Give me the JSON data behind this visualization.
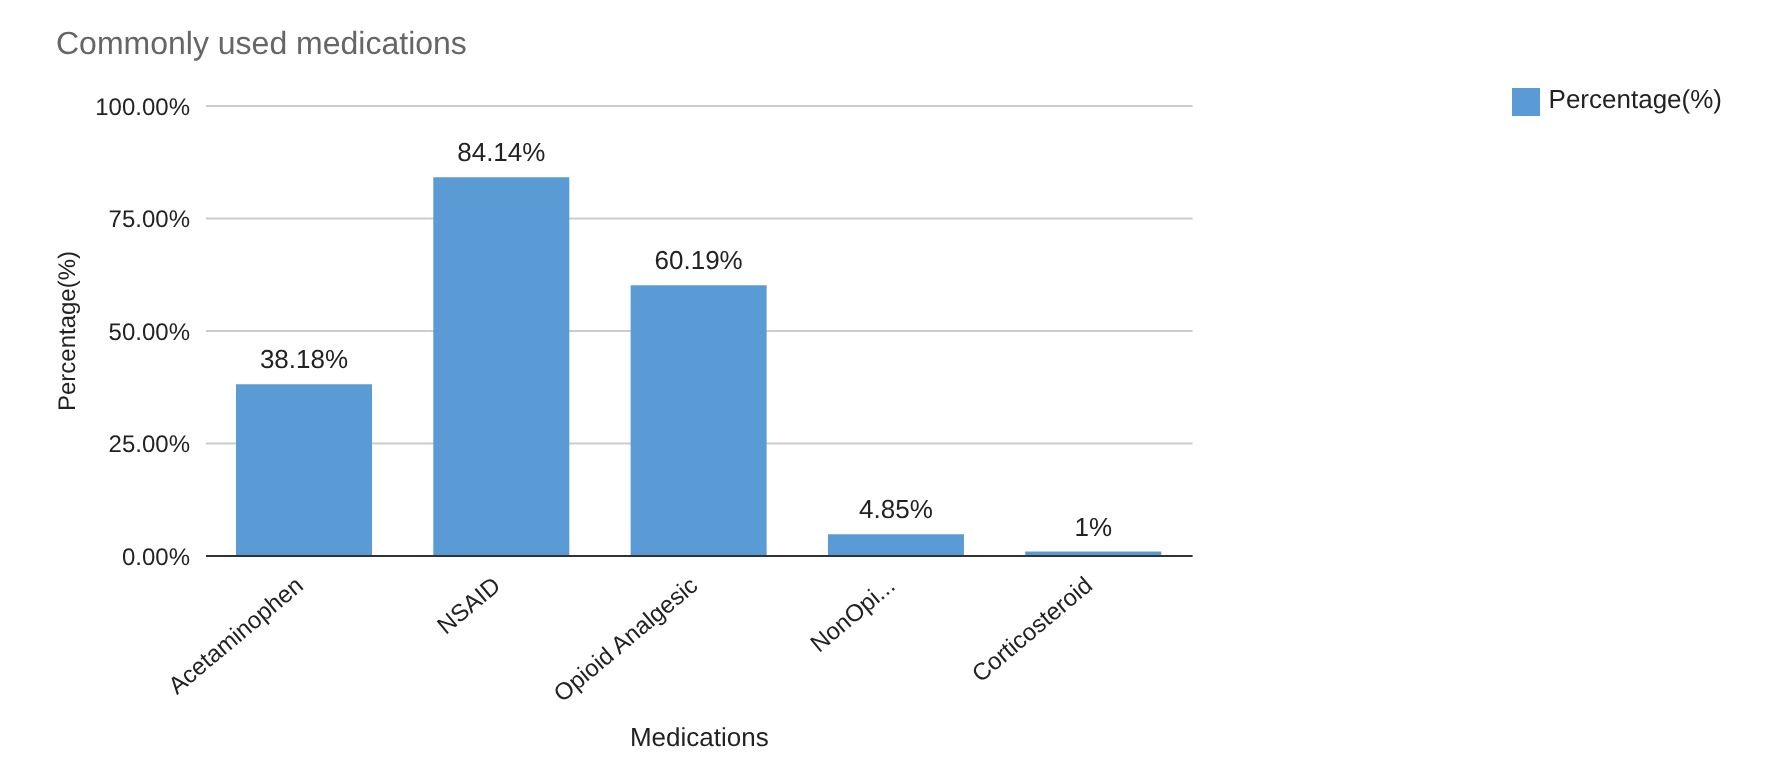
{
  "chart_data": {
    "type": "bar",
    "title": "Commonly used medications",
    "xlabel": "Medications",
    "ylabel": "Percentage(%)",
    "categories": [
      "Acetaminophen",
      "NSAID",
      "Opioid Analgesic",
      "NonOpi...",
      "Corticosteroid"
    ],
    "series": [
      {
        "name": "Percentage(%)",
        "color": "#5b9bd5",
        "values": [
          38.18,
          84.14,
          60.19,
          4.85,
          1
        ],
        "value_labels": [
          "38.18%",
          "84.14%",
          "60.19%",
          "4.85%",
          "1%"
        ]
      }
    ],
    "ylim": [
      0,
      100
    ],
    "yticks": [
      {
        "value": 0,
        "label": "0.00%"
      },
      {
        "value": 25,
        "label": "25.00%"
      },
      {
        "value": 50,
        "label": "50.00%"
      },
      {
        "value": 75,
        "label": "75.00%"
      },
      {
        "value": 100,
        "label": "100.00%"
      }
    ],
    "grid": "y",
    "legend": "top right"
  }
}
